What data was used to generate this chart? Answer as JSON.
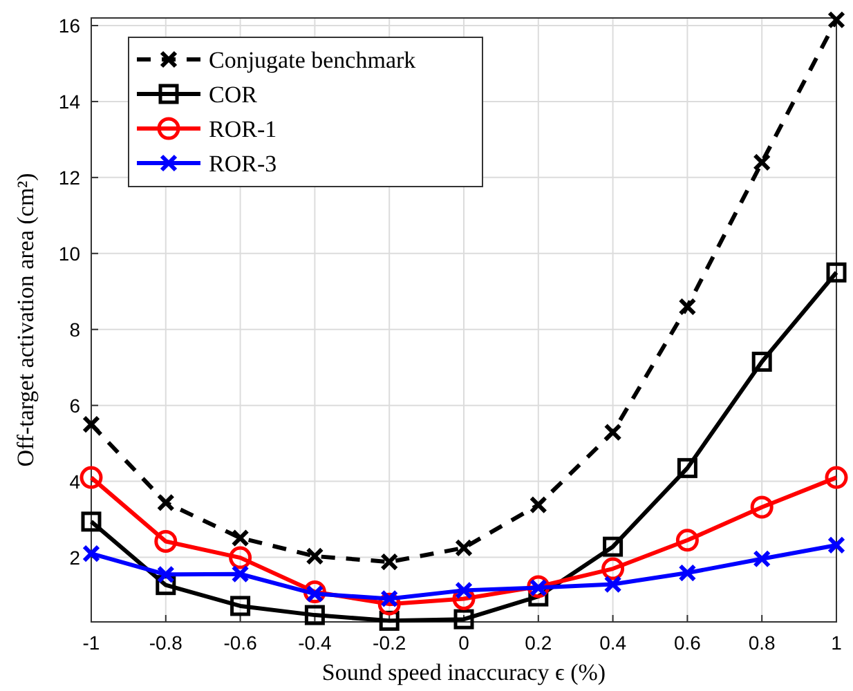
{
  "chart_data": {
    "type": "line",
    "xlabel": "Sound speed inaccuracy ϵ (%)",
    "ylabel": "Off-target activation area (cm²)",
    "x": [
      -1,
      -0.8,
      -0.6,
      -0.4,
      -0.2,
      0,
      0.2,
      0.4,
      0.6,
      0.8,
      1
    ],
    "xlim": [
      -1,
      1
    ],
    "xticks": [
      -1,
      -0.8,
      -0.6,
      -0.4,
      -0.2,
      0,
      0.2,
      0.4,
      0.6,
      0.8,
      1
    ],
    "ylim": [
      0.3,
      16.2
    ],
    "yticks": [
      2,
      4,
      6,
      8,
      10,
      12,
      14,
      16
    ],
    "grid": true,
    "legend": "top left",
    "series": [
      {
        "name": "Conjugate benchmark",
        "color": "#000000",
        "marker": "cross",
        "line_style": "dashed",
        "values": [
          5.5,
          3.44,
          2.51,
          2.03,
          1.88,
          2.25,
          3.38,
          5.29,
          8.6,
          12.4,
          16.15
        ]
      },
      {
        "name": "COR",
        "color": "#000000",
        "marker": "square",
        "line_style": "solid",
        "values": [
          2.94,
          1.27,
          0.72,
          0.48,
          0.33,
          0.37,
          0.97,
          2.28,
          4.35,
          7.15,
          9.5
        ]
      },
      {
        "name": "ROR-1",
        "color": "#ff0000",
        "marker": "circle",
        "line_style": "solid",
        "values": [
          4.1,
          2.42,
          1.99,
          1.09,
          0.77,
          0.91,
          1.23,
          1.7,
          2.45,
          3.32,
          4.1
        ]
      },
      {
        "name": "ROR-3",
        "color": "#0000ff",
        "marker": "cross",
        "line_style": "solid",
        "values": [
          2.1,
          1.55,
          1.56,
          1.04,
          0.91,
          1.13,
          1.2,
          1.29,
          1.59,
          1.96,
          2.32
        ]
      }
    ]
  }
}
